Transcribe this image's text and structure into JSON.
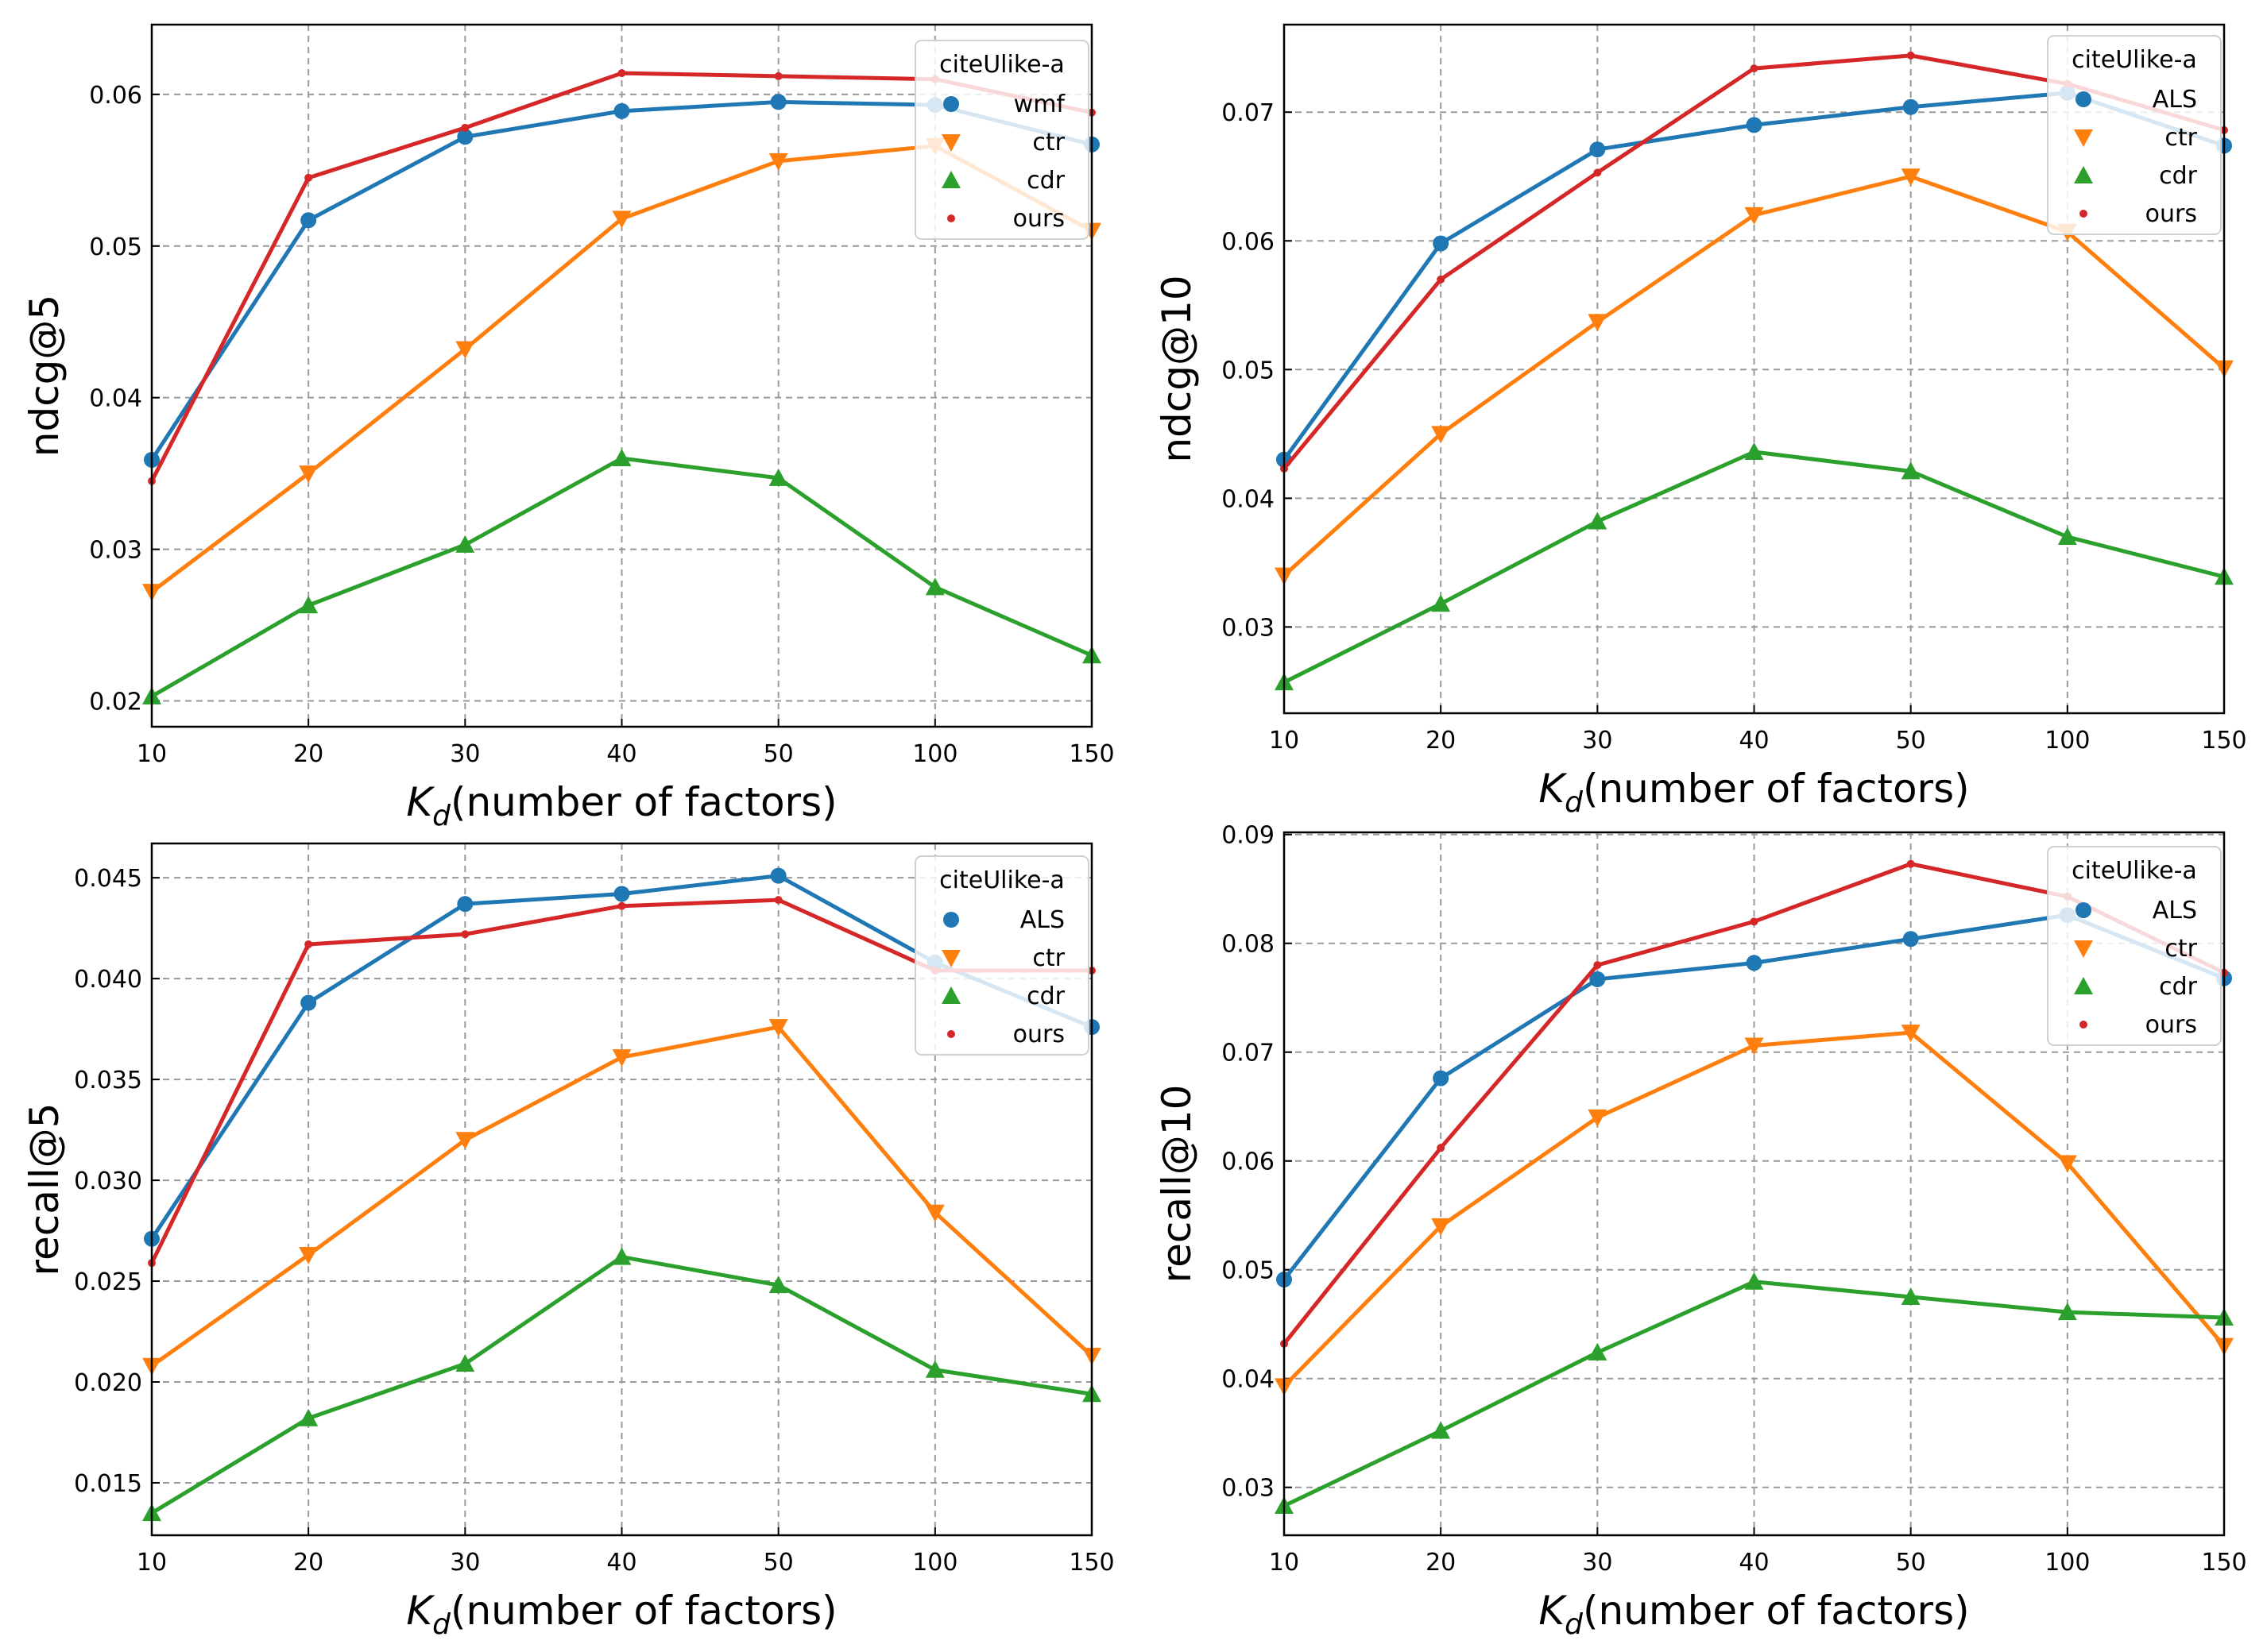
{
  "chart_data": [
    {
      "type": "line",
      "categories": [
        "10",
        "20",
        "30",
        "40",
        "50",
        "100",
        "150"
      ],
      "xlabel": {
        "symbol": "K",
        "subscript": "d",
        "text": "(number of factors)"
      },
      "ylabel": "ndcg@5",
      "ylim": [
        0.0183,
        0.0646
      ],
      "yticks": [
        "0.02",
        "0.03",
        "0.04",
        "0.05",
        "0.06"
      ],
      "grid": true,
      "legend": {
        "title": "citeUlike-a",
        "placement": "top-right"
      },
      "series": [
        {
          "name": "wmf",
          "color": "#1f77b4",
          "marker": "circle",
          "values": [
            0.0359,
            0.0517,
            0.0572,
            0.0589,
            0.0595,
            0.0593,
            0.0567
          ]
        },
        {
          "name": "ctr",
          "color": "#ff7f0e",
          "marker": "triangle-down",
          "values": [
            0.0272,
            0.035,
            0.0432,
            0.0518,
            0.0556,
            0.0566,
            0.051
          ]
        },
        {
          "name": "cdr",
          "color": "#2ca02c",
          "marker": "triangle-up",
          "values": [
            0.0203,
            0.0263,
            0.0303,
            0.036,
            0.0347,
            0.0275,
            0.023
          ]
        },
        {
          "name": "ours",
          "color": "#d62728",
          "marker": "dot",
          "values": [
            0.0345,
            0.0545,
            0.0578,
            0.0614,
            0.0612,
            0.061,
            0.0588
          ]
        }
      ]
    },
    {
      "type": "line",
      "categories": [
        "10",
        "20",
        "30",
        "40",
        "50",
        "100",
        "150"
      ],
      "xlabel": {
        "symbol": "K",
        "subscript": "d",
        "text": "(number of factors)"
      },
      "ylabel": "ndcg@10",
      "ylim": [
        0.0233,
        0.0768
      ],
      "yticks": [
        "0.03",
        "0.04",
        "0.05",
        "0.06",
        "0.07"
      ],
      "grid": true,
      "legend": {
        "title": "citeUlike-a",
        "placement": "top-right"
      },
      "series": [
        {
          "name": "ALS",
          "color": "#1f77b4",
          "marker": "circle",
          "values": [
            0.043,
            0.0598,
            0.0671,
            0.069,
            0.0704,
            0.0715,
            0.0674
          ]
        },
        {
          "name": "ctr",
          "color": "#ff7f0e",
          "marker": "triangle-down",
          "values": [
            0.034,
            0.045,
            0.0537,
            0.062,
            0.065,
            0.0607,
            0.0501
          ]
        },
        {
          "name": "cdr",
          "color": "#2ca02c",
          "marker": "triangle-up",
          "values": [
            0.0257,
            0.0318,
            0.0382,
            0.0436,
            0.0421,
            0.037,
            0.0339
          ]
        },
        {
          "name": "ours",
          "color": "#d62728",
          "marker": "dot",
          "values": [
            0.0423,
            0.057,
            0.0653,
            0.0734,
            0.0744,
            0.0722,
            0.0686
          ]
        }
      ]
    },
    {
      "type": "line",
      "categories": [
        "10",
        "20",
        "30",
        "40",
        "50",
        "100",
        "150"
      ],
      "xlabel": {
        "symbol": "K",
        "subscript": "d",
        "text": "(number of factors)"
      },
      "ylabel": "recall@5",
      "ylim": [
        0.0124,
        0.0467
      ],
      "yticks": [
        "0.015",
        "0.020",
        "0.025",
        "0.030",
        "0.035",
        "0.040",
        "0.045"
      ],
      "grid": true,
      "legend": {
        "title": "citeUlike-a",
        "placement": "top-right"
      },
      "series": [
        {
          "name": "ALS",
          "color": "#1f77b4",
          "marker": "circle",
          "values": [
            0.0271,
            0.0388,
            0.0437,
            0.0442,
            0.0451,
            0.0408,
            0.0376
          ]
        },
        {
          "name": "ctr",
          "color": "#ff7f0e",
          "marker": "triangle-down",
          "values": [
            0.0208,
            0.0263,
            0.032,
            0.0361,
            0.0376,
            0.0284,
            0.0213
          ]
        },
        {
          "name": "cdr",
          "color": "#2ca02c",
          "marker": "triangle-up",
          "values": [
            0.0135,
            0.0182,
            0.0209,
            0.0262,
            0.0248,
            0.0206,
            0.0194
          ]
        },
        {
          "name": "ours",
          "color": "#d62728",
          "marker": "dot",
          "values": [
            0.0259,
            0.0417,
            0.0422,
            0.0436,
            0.0439,
            0.0404,
            0.0404
          ]
        }
      ]
    },
    {
      "type": "line",
      "categories": [
        "10",
        "20",
        "30",
        "40",
        "50",
        "100",
        "150"
      ],
      "xlabel": {
        "symbol": "K",
        "subscript": "d",
        "text": "(number of factors)"
      },
      "ylabel": "recall@10",
      "ylim": [
        0.0256,
        0.0902
      ],
      "yticks": [
        "0.03",
        "0.04",
        "0.05",
        "0.06",
        "0.07",
        "0.08",
        "0.09"
      ],
      "grid": true,
      "legend": {
        "title": "citeUlike-a",
        "placement": "top-right"
      },
      "series": [
        {
          "name": "ALS",
          "color": "#1f77b4",
          "marker": "circle",
          "values": [
            0.0491,
            0.0676,
            0.0767,
            0.0782,
            0.0804,
            0.0826,
            0.0768
          ]
        },
        {
          "name": "ctr",
          "color": "#ff7f0e",
          "marker": "triangle-down",
          "values": [
            0.0393,
            0.054,
            0.064,
            0.0706,
            0.0718,
            0.0598,
            0.043
          ]
        },
        {
          "name": "cdr",
          "color": "#2ca02c",
          "marker": "triangle-up",
          "values": [
            0.0283,
            0.0352,
            0.0424,
            0.0489,
            0.0475,
            0.0461,
            0.0456
          ]
        },
        {
          "name": "ours",
          "color": "#d62728",
          "marker": "dot",
          "values": [
            0.0432,
            0.0612,
            0.078,
            0.082,
            0.0873,
            0.0843,
            0.0773
          ]
        }
      ]
    }
  ]
}
